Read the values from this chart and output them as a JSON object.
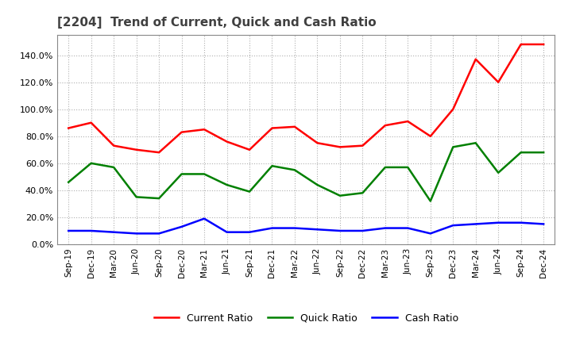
{
  "title": "[2204]  Trend of Current, Quick and Cash Ratio",
  "title_color": "#404040",
  "background_color": "#ffffff",
  "plot_background_color": "#ffffff",
  "grid_color": "#b0b0b0",
  "x_labels": [
    "Sep-19",
    "Dec-19",
    "Mar-20",
    "Jun-20",
    "Sep-20",
    "Dec-20",
    "Mar-21",
    "Jun-21",
    "Sep-21",
    "Dec-21",
    "Mar-22",
    "Jun-22",
    "Sep-22",
    "Dec-22",
    "Mar-23",
    "Jun-23",
    "Sep-23",
    "Dec-23",
    "Mar-24",
    "Jun-24",
    "Sep-24",
    "Dec-24"
  ],
  "current_ratio": [
    86.0,
    90.0,
    73.0,
    70.0,
    68.0,
    83.0,
    85.0,
    76.0,
    70.0,
    86.0,
    87.0,
    75.0,
    72.0,
    73.0,
    88.0,
    91.0,
    80.0,
    100.0,
    137.0,
    120.0,
    148.0,
    148.0
  ],
  "quick_ratio": [
    46.0,
    60.0,
    57.0,
    35.0,
    34.0,
    52.0,
    52.0,
    44.0,
    39.0,
    58.0,
    55.0,
    44.0,
    36.0,
    38.0,
    57.0,
    57.0,
    32.0,
    72.0,
    75.0,
    53.0,
    68.0,
    68.0
  ],
  "cash_ratio": [
    10.0,
    10.0,
    9.0,
    8.0,
    8.0,
    13.0,
    19.0,
    9.0,
    9.0,
    12.0,
    12.0,
    11.0,
    10.0,
    10.0,
    12.0,
    12.0,
    8.0,
    14.0,
    15.0,
    16.0,
    16.0,
    15.0
  ],
  "current_ratio_color": "#ff0000",
  "quick_ratio_color": "#008000",
  "cash_ratio_color": "#0000ff",
  "line_width": 1.8,
  "ylim": [
    0.0,
    155.0
  ],
  "yticks": [
    0.0,
    20.0,
    40.0,
    60.0,
    80.0,
    100.0,
    120.0,
    140.0
  ],
  "legend_labels": [
    "Current Ratio",
    "Quick Ratio",
    "Cash Ratio"
  ]
}
